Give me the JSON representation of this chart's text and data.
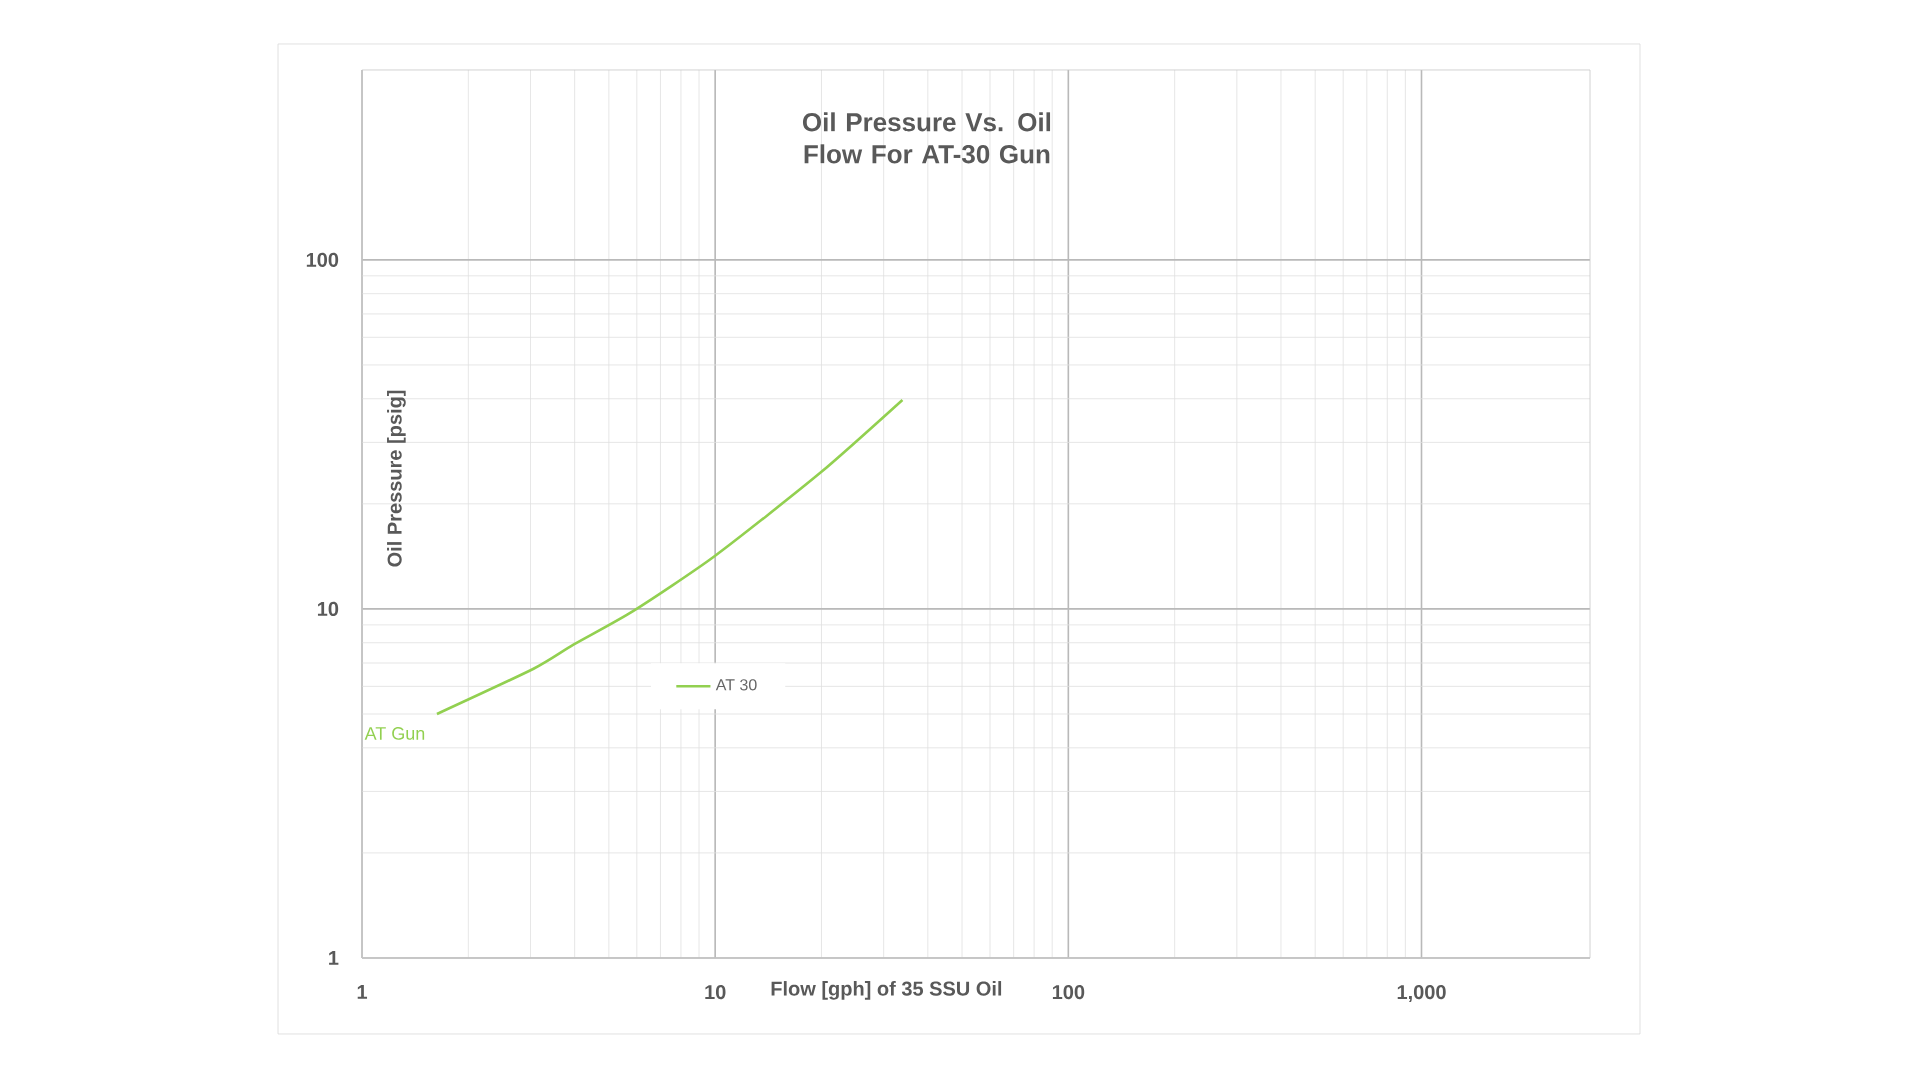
{
  "chart_data": {
    "type": "line",
    "title": "Oil Pressure Vs. Oil Flow For AT-30 Gun",
    "xlabel": "Flow [gph] of 35 SSU Oil",
    "ylabel": "Oil Pressure [psig]",
    "series": [
      {
        "name": "AT 30",
        "color": "#92d050",
        "x": [
          1.63,
          3.06,
          3.97,
          5.87,
          10.0,
          19.8,
          33.9
        ],
        "values": [
          5.0,
          6.74,
          7.9,
          9.87,
          14.2,
          24.5,
          39.7
        ]
      }
    ],
    "log": "xy",
    "xlim": [
      1,
      3000
    ],
    "ylim": [
      1,
      350
    ],
    "xticks": [
      1,
      10,
      100,
      {
        "value": 1000,
        "label": "1,000"
      }
    ],
    "yticks": [
      1,
      10,
      100
    ],
    "grid": true,
    "legend": "left",
    "marker": "none",
    "line_style": "solid",
    "annotations": [
      {
        "text": "AT Gun",
        "x": 1.63,
        "y": 5.0
      }
    ]
  }
}
